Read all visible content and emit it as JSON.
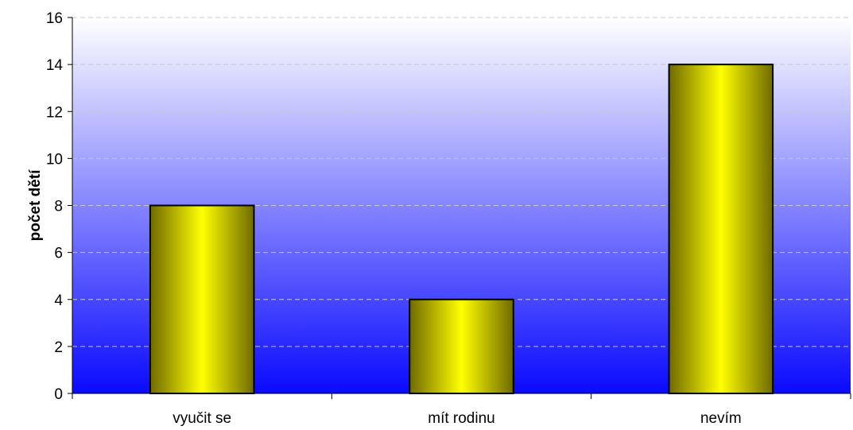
{
  "chart_data": {
    "type": "bar",
    "categories": [
      "vyučit se",
      "mít rodinu",
      "nevím"
    ],
    "values": [
      8,
      4,
      14
    ],
    "title": "",
    "xlabel": "",
    "ylabel": "počet dětí",
    "ylim": [
      0,
      16
    ],
    "yticks": [
      0,
      2,
      4,
      6,
      8,
      10,
      12,
      14,
      16
    ],
    "grid": true,
    "legend": "none",
    "colors": {
      "plot_background_top": "#ffffff",
      "plot_background_bottom": "#0a0aff",
      "bar_edge": "#6f6a00",
      "bar_center": "#ffff00",
      "bar_outline": "#000000",
      "gridline": "#c8c8c8"
    }
  }
}
